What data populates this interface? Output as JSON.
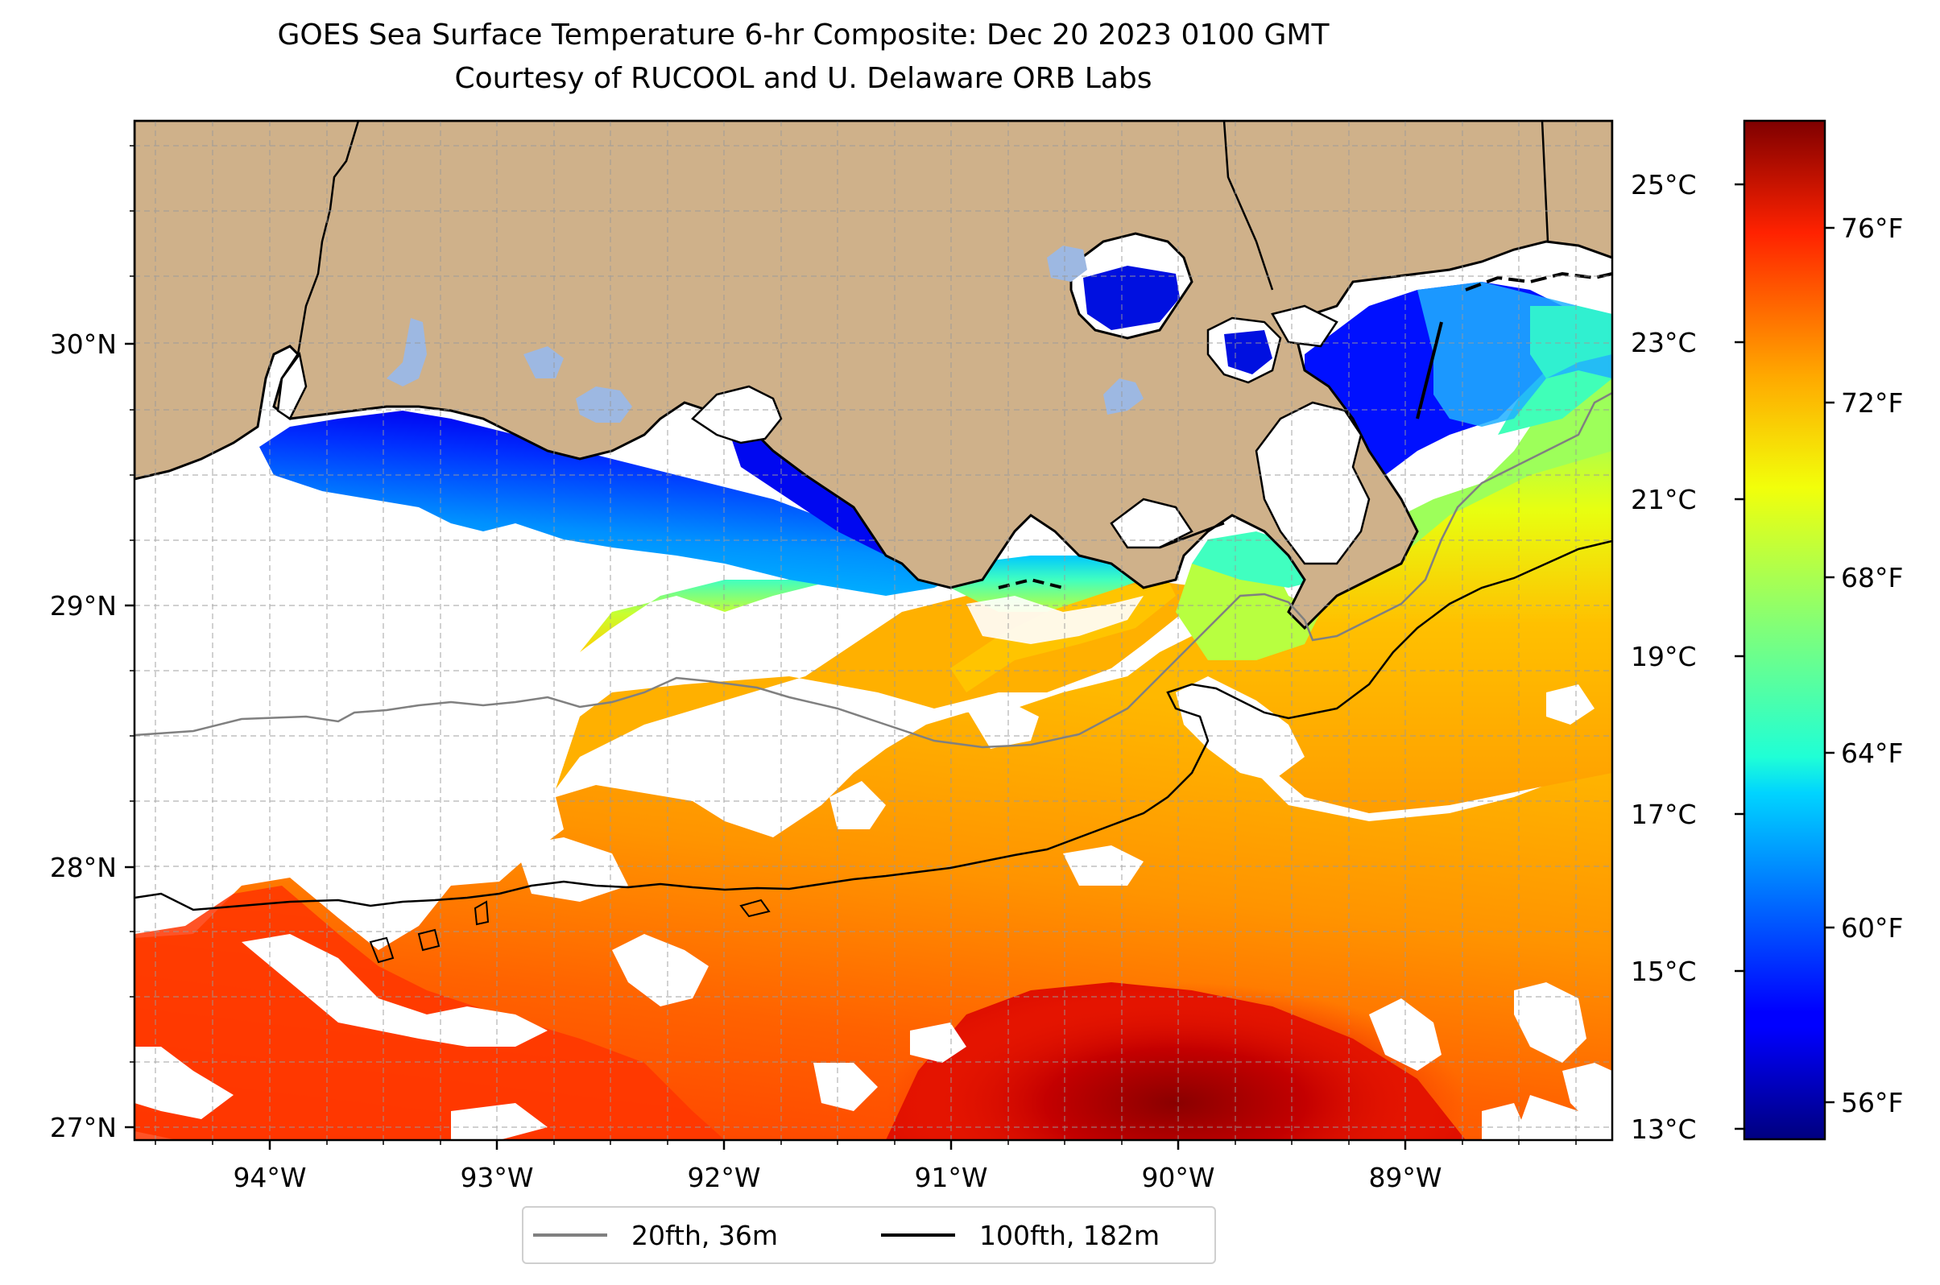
{
  "title": "GOES Sea Surface Temperature 6-hr Composite: Dec 20 2023 0100 GMT",
  "subtitle": "Courtesy of RUCOOL and U. Delaware ORB Labs",
  "map": {
    "lon_ticks": [
      "94°W",
      "93°W",
      "92°W",
      "91°W",
      "90°W",
      "89°W"
    ],
    "lat_ticks": [
      "30°N",
      "29°N",
      "28°N",
      "27°N"
    ],
    "extent": {
      "lon_min": -94.55,
      "lon_max": -88.1,
      "lat_min": 26.93,
      "lat_max": 30.85
    },
    "gridlines": true,
    "colors": {
      "land": "#cfb18a",
      "lakes": "#9db8e2",
      "no_data": "#ffffff"
    }
  },
  "colorbar": {
    "colormap": "jet",
    "celsius_ticks": [
      "25°C",
      "23°C",
      "21°C",
      "19°C",
      "17°C",
      "15°C",
      "13°C"
    ],
    "fahrenheit_ticks": [
      "76°F",
      "72°F",
      "68°F",
      "64°F",
      "60°F",
      "56°F"
    ],
    "range_c": [
      12.8,
      25.8
    ]
  },
  "legend": {
    "items": [
      {
        "label": "20fth, 36m",
        "color": "#808080"
      },
      {
        "label": "100fth, 182m",
        "color": "#000000"
      }
    ]
  }
}
